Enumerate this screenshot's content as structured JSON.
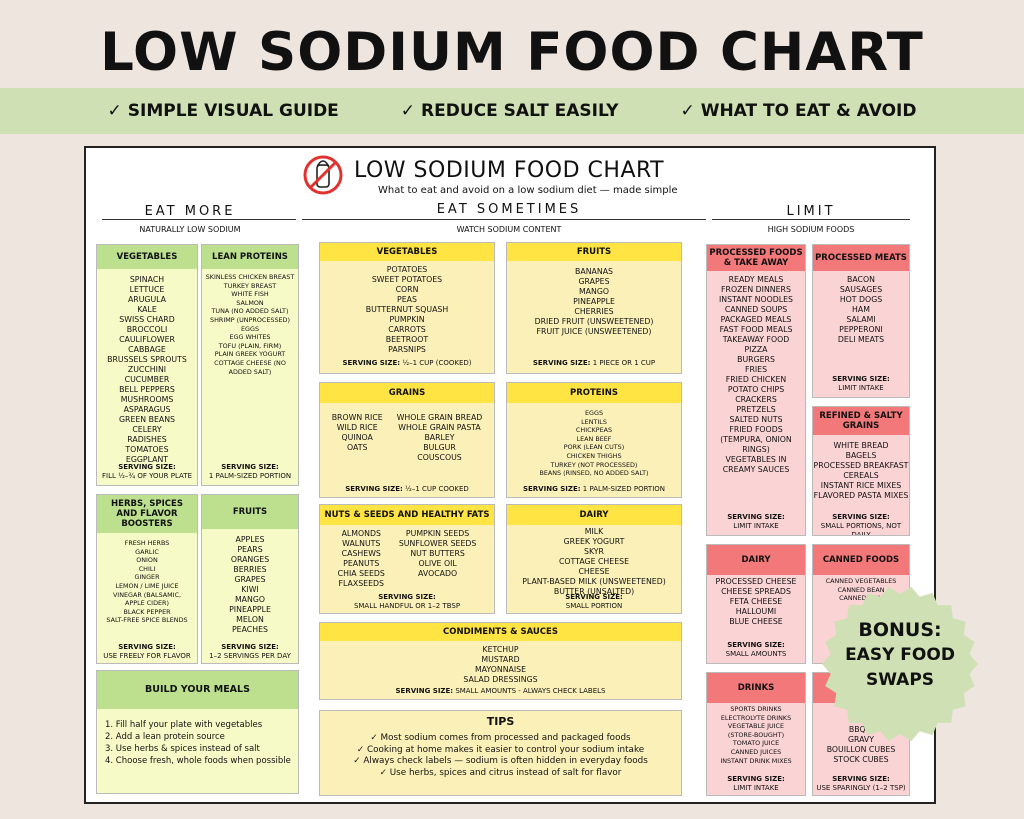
{
  "header": {
    "title": "LOW SODIUM FOOD CHART",
    "banner": [
      "SIMPLE VISUAL GUIDE",
      "REDUCE SALT EASILY",
      "WHAT TO EAT & AVOID"
    ],
    "check": "✓"
  },
  "sheet": {
    "title": "LOW SODIUM FOOD CHART",
    "subtitle": "What to eat and avoid on a low sodium diet — made simple"
  },
  "columns": {
    "more": {
      "title": "EAT MORE",
      "sub": "NATURALLY LOW SODIUM"
    },
    "sometimes": {
      "title": "EAT SOMETIMES",
      "sub": "WATCH SODIUM CONTENT"
    },
    "limit": {
      "title": "LIMIT",
      "sub": "HIGH SODIUM FOODS"
    }
  },
  "serving_label": "SERVING SIZE:",
  "more": {
    "vegetables": {
      "title": "VEGETABLES",
      "items": [
        "SPINACH",
        "LETTUCE",
        "ARUGULA",
        "KALE",
        "SWISS CHARD",
        "BROCCOLI",
        "CAULIFLOWER",
        "CABBAGE",
        "BRUSSELS SPROUTS",
        "ZUCCHINI",
        "CUCUMBER",
        "BELL PEPPERS",
        "MUSHROOMS",
        "ASPARAGUS",
        "GREEN BEANS",
        "CELERY",
        "RADISHES",
        "TOMATOES",
        "EGGPLANT"
      ],
      "serving": "FILL ½–¾ OF YOUR PLATE"
    },
    "proteins": {
      "title": "LEAN PROTEINS",
      "items": [
        "SKINLESS CHICKEN BREAST",
        "TURKEY BREAST",
        "WHITE FISH",
        "SALMON",
        "TUNA (NO ADDED SALT)",
        "SHRIMP (UNPROCESSED)",
        "EGGS",
        "EGG WHITES",
        "TOFU (PLAIN, FIRM)",
        "PLAIN GREEK YOGURT",
        "COTTAGE CHEESE (NO",
        "ADDED SALT)"
      ],
      "serving": "1 PALM-SIZED PORTION"
    },
    "herbs": {
      "title": "HERBS, SPICES AND FLAVOR BOOSTERS",
      "items": [
        "FRESH HERBS",
        "GARLIC",
        "ONION",
        "CHILI",
        "GINGER",
        "LEMON / LIME JUICE",
        "VINEGAR (BALSAMIC,",
        "APPLE CIDER)",
        "BLACK PEPPER",
        "SALT-FREE SPICE BLENDS"
      ],
      "serving": "USE FREELY FOR FLAVOR"
    },
    "fruits": {
      "title": "FRUITS",
      "items": [
        "APPLES",
        "PEARS",
        "ORANGES",
        "BERRIES",
        "GRAPES",
        "KIWI",
        "MANGO",
        "PINEAPPLE",
        "MELON",
        "PEACHES"
      ],
      "serving": "1–2 SERVINGS PER DAY"
    },
    "meals": {
      "title": "BUILD YOUR MEALS",
      "items": [
        "1.     Fill half your plate with vegetables",
        "2.         Add a lean protein source",
        "3.       Use herbs & spices instead of salt",
        "4.  Choose fresh, whole foods when possible"
      ]
    }
  },
  "sometimes": {
    "vegetables": {
      "title": "VEGETABLES",
      "items": [
        "POTATOES",
        "SWEET POTATOES",
        "CORN",
        "PEAS",
        "BUTTERNUT SQUASH",
        "PUMPKIN",
        "CARROTS",
        "BEETROOT",
        "PARSNIPS"
      ],
      "serving": "½–1 CUP (COOKED)"
    },
    "fruits": {
      "title": "FRUITS",
      "items": [
        "BANANAS",
        "GRAPES",
        "MANGO",
        "PINEAPPLE",
        "CHERRIES",
        "DRIED FRUIT (UNSWEETENED)",
        "FRUIT JUICE (UNSWEETENED)"
      ],
      "serving": "1 PIECE OR 1 CUP"
    },
    "grains": {
      "title": "GRAINS",
      "left": [
        "BROWN RICE",
        "WILD RICE",
        "QUINOA",
        "OATS"
      ],
      "right": [
        "WHOLE GRAIN BREAD",
        "WHOLE GRAIN PASTA",
        "BARLEY",
        "BULGUR",
        "COUSCOUS"
      ],
      "serving": "½–1 CUP COOKED"
    },
    "proteins": {
      "title": "PROTEINS",
      "items": [
        "EGGS",
        "LENTILS",
        "CHICKPEAS",
        "LEAN BEEF",
        "PORK (LEAN CUTS)",
        "CHICKEN THIGHS",
        "TURKEY (NOT PROCESSED)",
        "BEANS (RINSED, NO ADDED SALT)"
      ],
      "serving": "1 PALM-SIZED PORTION"
    },
    "nuts": {
      "title": "NUTS & SEEDS AND HEALTHY FATS",
      "left": [
        "ALMONDS",
        "WALNUTS",
        "CASHEWS",
        "PEANUTS",
        "CHIA SEEDS",
        "FLAXSEEDS"
      ],
      "right": [
        "PUMPKIN SEEDS",
        "SUNFLOWER SEEDS",
        "NUT BUTTERS",
        "OLIVE OIL",
        "AVOCADO"
      ],
      "serving": "SMALL HANDFUL OR 1–2 TBSP"
    },
    "dairy": {
      "title": "DAIRY",
      "items": [
        "MILK",
        "GREEK YOGURT",
        "SKYR",
        "COTTAGE CHEESE",
        "CHEESE",
        "PLANT-BASED MILK (UNSWEETENED)",
        "BUTTER (UNSALTED)"
      ],
      "serving": "SMALL PORTION"
    },
    "condiments": {
      "title": "CONDIMENTS & SAUCES",
      "items": [
        "KETCHUP",
        "MUSTARD",
        "MAYONNAISE",
        "SALAD DRESSINGS"
      ],
      "serving": "SMALL AMOUNTS - ALWAYS CHECK LABELS"
    },
    "tips": {
      "title": "TIPS",
      "items": [
        "✓ Most sodium comes from processed and packaged foods",
        "✓ Cooking at home makes it easier to control your sodium intake",
        "✓ Always check labels — sodium is often hidden in everyday foods",
        "✓ Use herbs, spices and citrus instead of salt for flavor"
      ]
    }
  },
  "limit": {
    "processed_foods": {
      "title": "PROCESSED FOODS & TAKE AWAY",
      "items": [
        "READY MEALS",
        "FROZEN DINNERS",
        "INSTANT NOODLES",
        "CANNED SOUPS",
        "PACKAGED MEALS",
        "FAST FOOD MEALS",
        "TAKEAWAY FOOD",
        "PIZZA",
        "BURGERS",
        "FRIES",
        "FRIED CHICKEN",
        "POTATO CHIPS",
        "CRACKERS",
        "PRETZELS",
        "SALTED NUTS",
        "FRIED FOODS",
        "(TEMPURA, ONION",
        "RINGS)",
        "VEGETABLES IN",
        "CREAMY SAUCES"
      ],
      "serving": "LIMIT INTAKE"
    },
    "processed_meats": {
      "title": "PROCESSED MEATS",
      "items": [
        "BACON",
        "SAUSAGES",
        "HOT DOGS",
        "HAM",
        "SALAMI",
        "PEPPERONI",
        "DELI MEATS"
      ],
      "serving": "LIMIT INTAKE"
    },
    "refined_grains": {
      "title": "REFINED & SALTY GRAINS",
      "items": [
        "WHITE BREAD",
        "BAGELS",
        "PROCESSED BREAKFAST",
        "CEREALS",
        "INSTANT RICE MIXES",
        "FLAVORED PASTA MIXES"
      ],
      "serving": "SMALL PORTIONS, NOT DAILY"
    },
    "dairy": {
      "title": "DAIRY",
      "items": [
        "PROCESSED CHEESE",
        "CHEESE SPREADS",
        "FETA CHEESE",
        "HALLOUMI",
        "BLUE CHEESE"
      ],
      "serving": "SMALL AMOUNTS"
    },
    "canned": {
      "title": "CANNED FOODS",
      "items": [
        "CANNED VEGETABLES",
        "CANNED BEAN",
        "CANNED FISH"
      ]
    },
    "drinks": {
      "title": "DRINKS",
      "items": [
        "SPORTS DRINKS",
        "ELECTROLYTE DRINKS",
        "VEGETABLE JUICE",
        "(STORE-BOUGHT)",
        "TOMATO JUICE",
        "CANNED JUICES",
        "INSTANT DRINK MIXES"
      ],
      "serving": "LIMIT INTAKE"
    },
    "sauces": {
      "items": [
        "TERI",
        "BBQ S",
        "GRAVY",
        "BOUILLON CUBES",
        "STOCK CUBES"
      ],
      "serving": "USE SPARINGLY (1–2 TSP)"
    }
  },
  "bonus": {
    "line1": "BONUS:",
    "line2": "EASY FOOD",
    "line3": "SWAPS"
  },
  "colors": {
    "green": "#bde08f",
    "yellow": "#ffe443",
    "red": "#f3787a",
    "banner": "#cfe0b4",
    "bonus": "#cfe0b4"
  }
}
